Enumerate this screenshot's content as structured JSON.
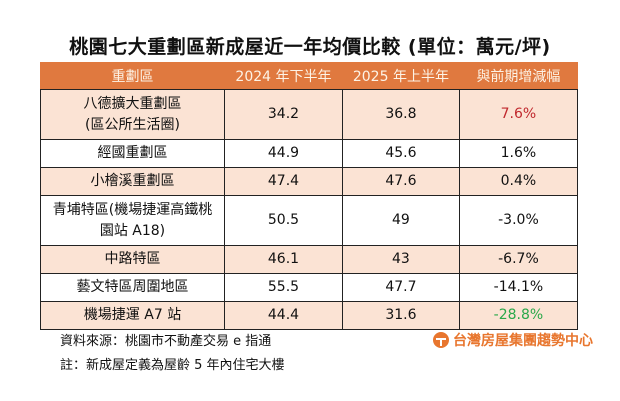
{
  "title": "桃園七大重劃區新成屋近一年均價比較 (單位：萬元/坪)",
  "chart_data": {
    "type": "table",
    "columns": [
      "重劃區",
      "2024 年下半年",
      "2025 年上半年",
      "與前期增減幅"
    ],
    "rows": [
      {
        "name": [
          "八德擴大重劃區",
          "(區公所生活圈)"
        ],
        "h2024": "34.2",
        "h2025": "36.8",
        "change": "7.6%",
        "trend": "pos"
      },
      {
        "name": [
          "經國重劃區"
        ],
        "h2024": "44.9",
        "h2025": "45.6",
        "change": "1.6%",
        "trend": ""
      },
      {
        "name": [
          "小檜溪重劃區"
        ],
        "h2024": "47.4",
        "h2025": "47.6",
        "change": "0.4%",
        "trend": ""
      },
      {
        "name": [
          "青埔特區(機場捷運高鐵桃",
          "園站 A18)"
        ],
        "h2024": "50.5",
        "h2025": "49",
        "change": "-3.0%",
        "trend": ""
      },
      {
        "name": [
          "中路特區"
        ],
        "h2024": "46.1",
        "h2025": "43",
        "change": "-6.7%",
        "trend": ""
      },
      {
        "name": [
          "藝文特區周圍地區"
        ],
        "h2024": "55.5",
        "h2025": "47.7",
        "change": "-14.1%",
        "trend": ""
      },
      {
        "name": [
          "機場捷運 A7 站"
        ],
        "h2024": "44.4",
        "h2025": "31.6",
        "change": "-28.8%",
        "trend": "neg"
      }
    ]
  },
  "colors": {
    "header": "#e0793f",
    "stripe": "#fbe3d4",
    "increase": "#c0282d",
    "decrease": "#2aa84a"
  },
  "notes": {
    "source": "資料來源：桃園市不動產交易 e 指通",
    "definition": "註：新成屋定義為屋齡 5 年內住宅大樓"
  },
  "logo": "台灣房屋集團趨勢中心"
}
